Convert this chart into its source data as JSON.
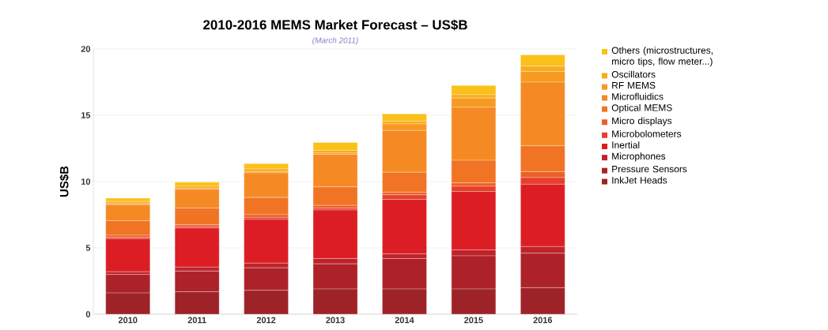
{
  "chart_data": {
    "type": "bar",
    "stacked": true,
    "title": "2010-2016 MEMS Market Forecast – US$B",
    "annotations": [
      "(March 2011)"
    ],
    "ylabel": "US$B",
    "categories": [
      "2010",
      "2011",
      "2012",
      "2013",
      "2014",
      "2015",
      "2016"
    ],
    "ylim": [
      0,
      20
    ],
    "yticks": [
      0,
      5,
      10,
      15,
      20
    ],
    "grid": "y",
    "legend": "right",
    "series": [
      {
        "name": "InkJet Heads",
        "color": "#9e2328",
        "values": [
          1.6,
          1.7,
          1.8,
          1.9,
          1.9,
          1.9,
          2.0
        ]
      },
      {
        "name": "Pressure Sensors",
        "color": "#ad2229",
        "values": [
          1.4,
          1.55,
          1.7,
          1.9,
          2.3,
          2.5,
          2.6
        ]
      },
      {
        "name": "Microphones",
        "color": "#bf2329",
        "values": [
          0.2,
          0.3,
          0.35,
          0.4,
          0.35,
          0.45,
          0.5
        ]
      },
      {
        "name": "Inertial",
        "color": "#dc1e24",
        "values": [
          2.5,
          2.95,
          3.3,
          3.65,
          4.1,
          4.4,
          4.7
        ]
      },
      {
        "name": "Microbolometers",
        "color": "#e6402a",
        "values": [
          0.1,
          0.1,
          0.15,
          0.15,
          0.35,
          0.4,
          0.5
        ]
      },
      {
        "name": "Micro displays",
        "color": "#ec5f28",
        "values": [
          0.15,
          0.15,
          0.2,
          0.2,
          0.2,
          0.25,
          0.45
        ]
      },
      {
        "name": "Optical MEMS",
        "color": "#f07424",
        "values": [
          1.1,
          1.25,
          1.3,
          1.4,
          1.5,
          1.7,
          1.95
        ]
      },
      {
        "name": "Microfluidics",
        "color": "#f58a25",
        "values": [
          1.2,
          1.4,
          1.85,
          2.45,
          3.15,
          4.0,
          4.8
        ]
      },
      {
        "name": "RF MEMS",
        "color": "#f79a22",
        "values": [
          0.1,
          0.1,
          0.1,
          0.1,
          0.5,
          0.7,
          0.8
        ]
      },
      {
        "name": "Oscillators",
        "color": "#f9ac1c",
        "values": [
          0.15,
          0.15,
          0.2,
          0.2,
          0.2,
          0.25,
          0.4
        ]
      },
      {
        "name": "Others (microstructures, micro tips, flow meter...)",
        "color": "#fbc01a",
        "values": [
          0.25,
          0.3,
          0.4,
          0.6,
          0.55,
          0.7,
          0.85
        ]
      }
    ]
  }
}
